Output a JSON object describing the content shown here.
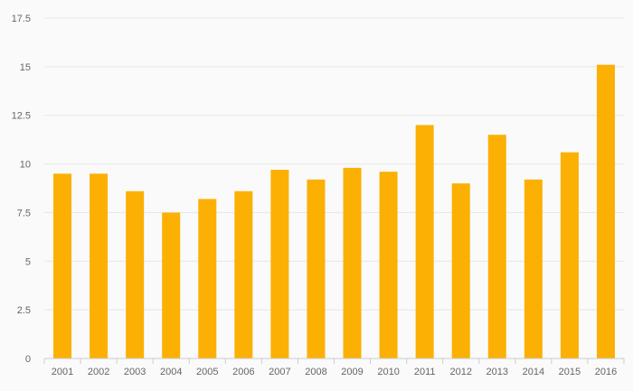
{
  "chart_data": {
    "type": "bar",
    "categories": [
      "2001",
      "2002",
      "2003",
      "2004",
      "2005",
      "2006",
      "2007",
      "2008",
      "2009",
      "2010",
      "2011",
      "2012",
      "2013",
      "2014",
      "2015",
      "2016"
    ],
    "values": [
      9.5,
      9.5,
      8.6,
      7.5,
      8.2,
      8.6,
      9.7,
      9.2,
      9.8,
      9.6,
      12.0,
      9.0,
      11.5,
      9.2,
      10.6,
      15.1
    ],
    "title": "",
    "xlabel": "",
    "ylabel": "",
    "ylim": [
      0,
      17.5
    ],
    "yticks": [
      "0",
      "2.5",
      "5",
      "7.5",
      "10",
      "12.5",
      "15",
      "17.5"
    ],
    "grid": true,
    "legend": "none",
    "bar_color": "#fbb003",
    "grid_color": "#e6e6e6",
    "axis_color": "#cccccc",
    "label_color": "#666666",
    "background": "#fafafa"
  }
}
